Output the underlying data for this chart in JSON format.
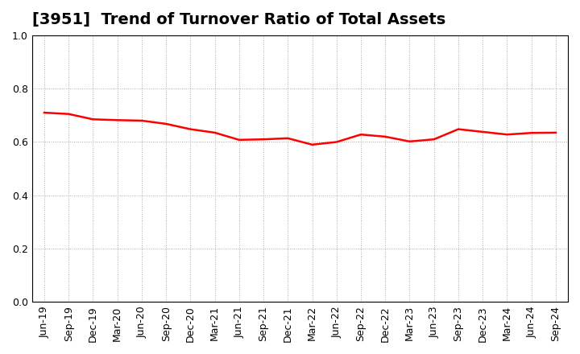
{
  "title": "[3951]  Trend of Turnover Ratio of Total Assets",
  "x_labels": [
    "Jun-19",
    "Sep-19",
    "Dec-19",
    "Mar-20",
    "Jun-20",
    "Sep-20",
    "Dec-20",
    "Mar-21",
    "Jun-21",
    "Sep-21",
    "Dec-21",
    "Mar-22",
    "Jun-22",
    "Sep-22",
    "Dec-22",
    "Mar-23",
    "Jun-23",
    "Sep-23",
    "Dec-23",
    "Mar-24",
    "Jun-24",
    "Sep-24"
  ],
  "y_values": [
    0.71,
    0.705,
    0.685,
    0.682,
    0.68,
    0.668,
    0.648,
    0.635,
    0.608,
    0.61,
    0.614,
    0.59,
    0.6,
    0.628,
    0.62,
    0.602,
    0.61,
    0.648,
    0.638,
    0.628,
    0.634,
    0.635
  ],
  "line_color": "#FF0000",
  "line_width": 1.8,
  "ylim": [
    0.0,
    1.0
  ],
  "yticks": [
    0.0,
    0.2,
    0.4,
    0.6,
    0.8,
    1.0
  ],
  "grid_color": "#aaaaaa",
  "bg_color": "#ffffff",
  "title_fontsize": 14,
  "tick_fontsize": 9
}
